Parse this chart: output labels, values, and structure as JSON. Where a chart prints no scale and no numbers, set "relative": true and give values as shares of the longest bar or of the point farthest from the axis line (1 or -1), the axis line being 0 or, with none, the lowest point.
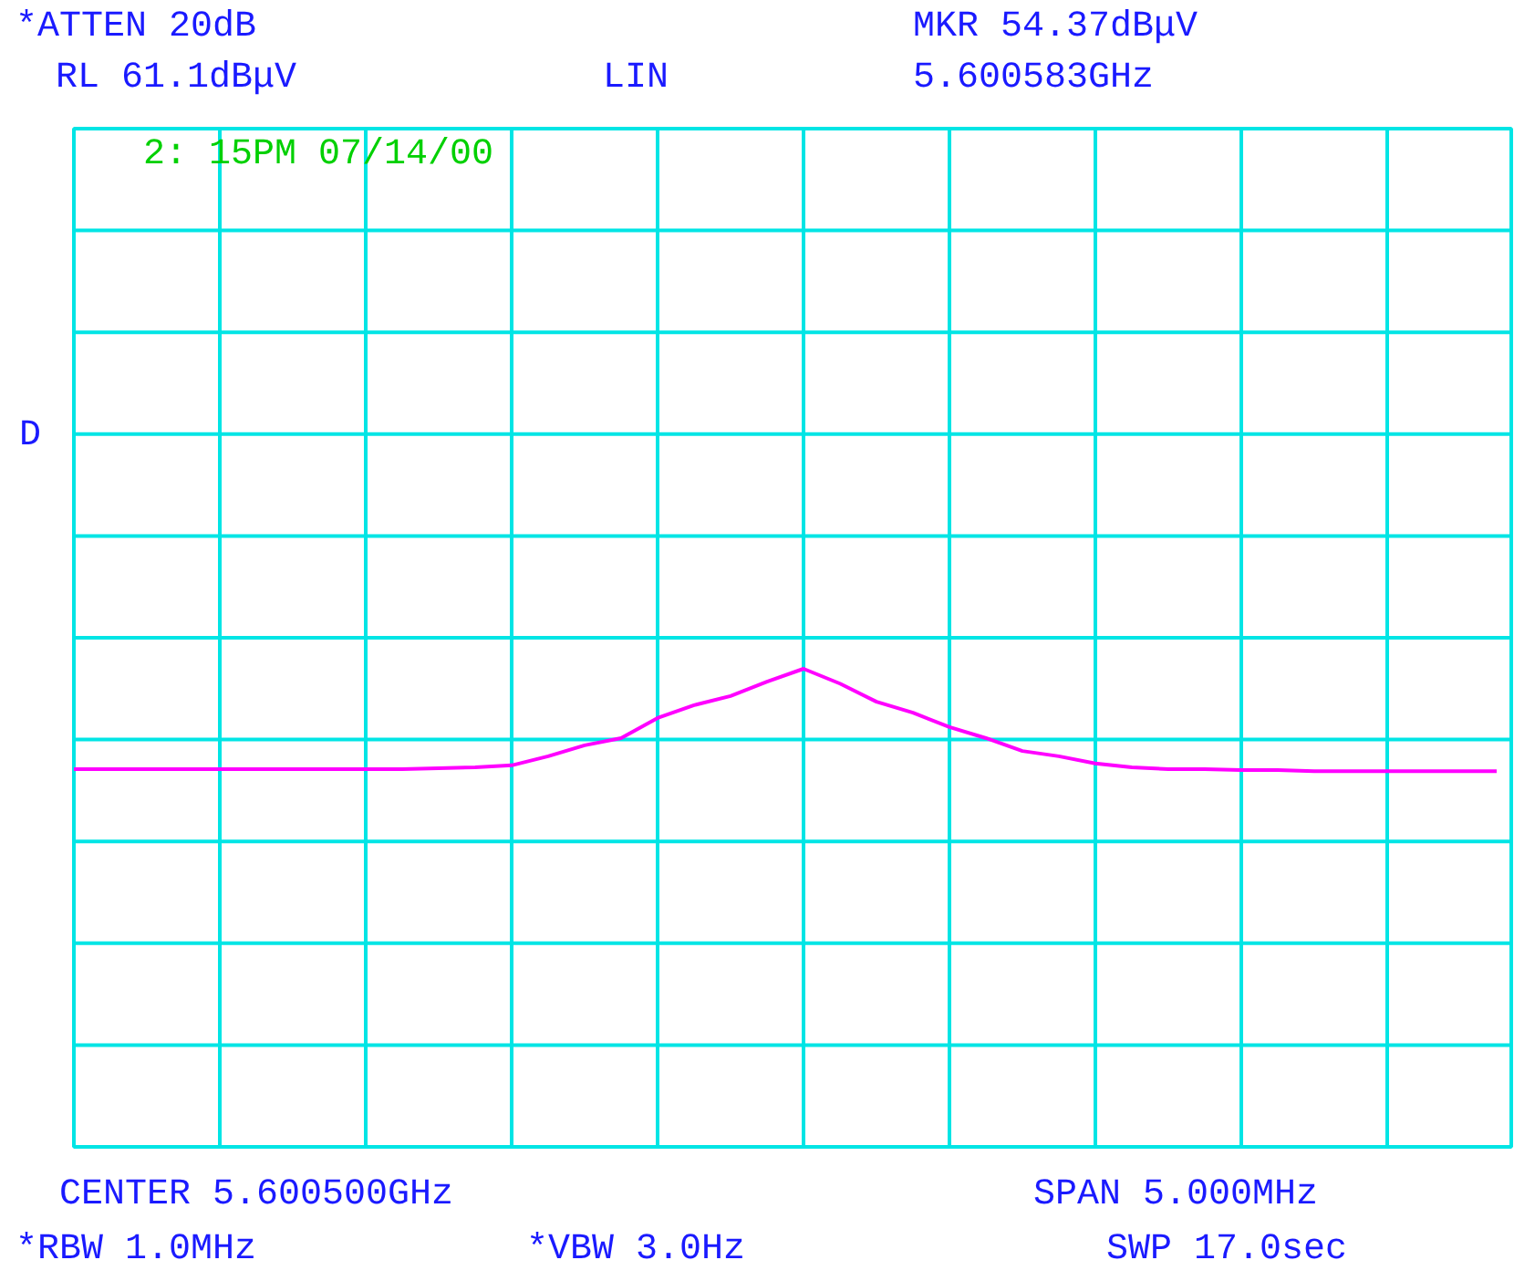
{
  "chart_data": {
    "type": "line",
    "relative": true,
    "grid": true,
    "marker": "none",
    "line_style": "solid",
    "categories": [
      null,
      null,
      null,
      null,
      null,
      null,
      null,
      null,
      null,
      null,
      null,
      null,
      null,
      null,
      null,
      null,
      null,
      null,
      null,
      null,
      null,
      null,
      null,
      null,
      null,
      null,
      null,
      null,
      null,
      null,
      null,
      null,
      null,
      null,
      null,
      null,
      null,
      null,
      null,
      null
    ],
    "series": [
      {
        "color": "#ff00ff",
        "values": [
          0.79,
          0.79,
          0.79,
          0.79,
          0.79,
          0.79,
          0.79,
          0.79,
          0.79,
          0.79,
          0.792,
          0.794,
          0.798,
          0.817,
          0.84,
          0.855,
          0.897,
          0.924,
          0.943,
          0.973,
          1.0,
          0.969,
          0.931,
          0.908,
          0.878,
          0.855,
          0.828,
          0.817,
          0.802,
          0.794,
          0.79,
          0.79,
          0.788,
          0.788,
          0.786,
          0.786,
          0.786,
          0.786,
          0.786,
          0.786
        ]
      }
    ],
    "annotations": [
      "*ATTEN 20dB",
      "RL 61.1dBμV",
      "LIN",
      "MKR 54.37dBμV",
      "5.600583GHz",
      "2: 15PM  07/14/00",
      "D",
      "CENTER 5.600500GHz",
      "SPAN 5.000MHz",
      "*RBW 1.0MHz",
      "*VBW 3.0Hz",
      "SWP 17.0sec"
    ]
  }
}
